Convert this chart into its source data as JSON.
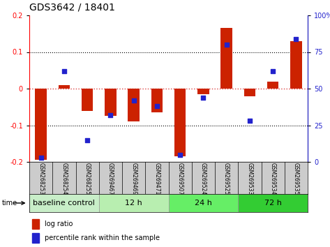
{
  "title": "GDS3642 / 18401",
  "samples": [
    "GSM268253",
    "GSM268254",
    "GSM268255",
    "GSM269467",
    "GSM269469",
    "GSM269471",
    "GSM269507",
    "GSM269524",
    "GSM269525",
    "GSM269533",
    "GSM269534",
    "GSM269535"
  ],
  "log_ratio": [
    -0.195,
    0.01,
    -0.06,
    -0.075,
    -0.09,
    -0.065,
    -0.185,
    -0.015,
    0.165,
    -0.02,
    0.02,
    0.13
  ],
  "percentile_rank": [
    3,
    62,
    15,
    32,
    42,
    38,
    5,
    44,
    80,
    28,
    62,
    84
  ],
  "ylim_left": [
    -0.2,
    0.2
  ],
  "ylim_right": [
    0,
    100
  ],
  "yticks_left": [
    -0.2,
    -0.1,
    0.0,
    0.1,
    0.2
  ],
  "yticks_right": [
    0,
    25,
    50,
    75,
    100
  ],
  "groups": [
    {
      "label": "baseline control",
      "start": 0,
      "end": 3,
      "color": "#c8eec8"
    },
    {
      "label": "12 h",
      "start": 3,
      "end": 6,
      "color": "#b8eeb0"
    },
    {
      "label": "24 h",
      "start": 6,
      "end": 9,
      "color": "#66ee66"
    },
    {
      "label": "72 h",
      "start": 9,
      "end": 12,
      "color": "#33cc33"
    }
  ],
  "bar_color": "#cc2200",
  "dot_color": "#2222cc",
  "grid_color": "#000000",
  "zero_line_color": "#dd4444",
  "bg_plot": "#ffffff",
  "bg_samples": "#cccccc",
  "title_fontsize": 10,
  "tick_fontsize": 7,
  "label_fontsize": 5.5,
  "group_fontsize": 8,
  "legend_fontsize": 7
}
